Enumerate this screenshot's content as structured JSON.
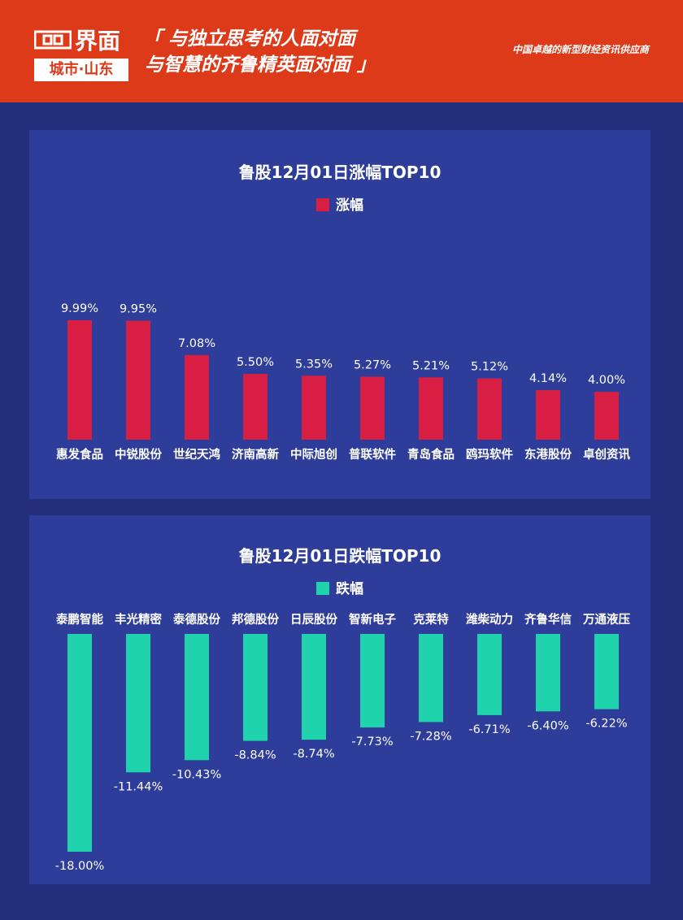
{
  "header": {
    "logo_text": "界面",
    "logo_sub": "城市·山东",
    "slogan_line1": "「 与独立思考的人面对面",
    "slogan_line2": "与智慧的齐鲁精英面对面 」",
    "tagline": "中国卓越的新型财经资讯供应商"
  },
  "colors": {
    "header_bg": "#dd3a1a",
    "page_bg": "#232f7a",
    "panel_bg": "#2e3d9a",
    "gain": "#d81e43",
    "loss": "#1fd3ad"
  },
  "chart_data": [
    {
      "type": "bar",
      "title": "鲁股12月01日涨幅TOP10",
      "series": [
        {
          "name": "涨幅",
          "values": [
            9.99,
            9.95,
            7.08,
            5.5,
            5.35,
            5.27,
            5.21,
            5.12,
            4.14,
            4.0
          ],
          "labels": [
            "9.99%",
            "9.95%",
            "7.08%",
            "5.50%",
            "5.35%",
            "5.27%",
            "5.21%",
            "5.12%",
            "4.14%",
            "4.00%"
          ]
        }
      ],
      "categories": [
        "惠发食品",
        "中锐股份",
        "世纪天鸿",
        "济南高新",
        "中际旭创",
        "普联软件",
        "青岛食品",
        "鸥玛软件",
        "东港股份",
        "卓创资讯"
      ],
      "legend_position": "top-center"
    },
    {
      "type": "bar",
      "title": "鲁股12月01日跌幅TOP10",
      "series": [
        {
          "name": "跌幅",
          "values": [
            -18.0,
            -11.44,
            -10.43,
            -8.84,
            -8.74,
            -7.73,
            -7.28,
            -6.71,
            -6.4,
            -6.22
          ],
          "labels": [
            "-18.00%",
            "-11.44%",
            "-10.43%",
            "-8.84%",
            "-8.74%",
            "-7.73%",
            "-7.28%",
            "-6.71%",
            "-6.40%",
            "-6.22%"
          ]
        }
      ],
      "categories": [
        "泰鹏智能",
        "丰光精密",
        "泰德股份",
        "邦德股份",
        "日辰股份",
        "智新电子",
        "克莱特",
        "潍柴动力",
        "齐鲁华信",
        "万通液压"
      ],
      "legend_position": "top-center"
    }
  ]
}
